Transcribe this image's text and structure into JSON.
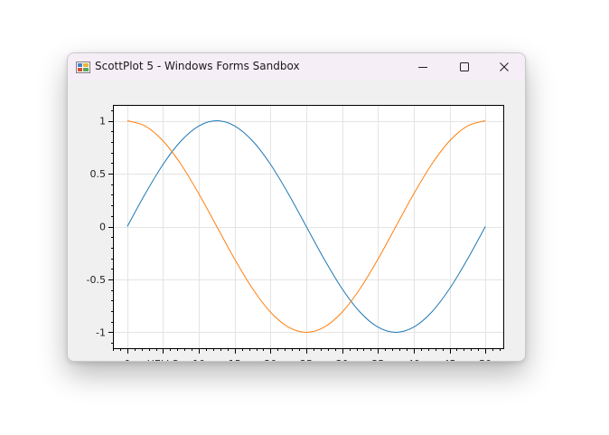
{
  "window": {
    "title": "ScottPlot 5 - Windows Forms Sandbox"
  },
  "icons": {
    "app": "scottplot-app-icon",
    "minimize": "minimize-icon",
    "maximize": "maximize-icon",
    "close": "close-icon"
  },
  "chart_data": {
    "type": "line",
    "title": "",
    "xlabel": "",
    "ylabel": "",
    "xlim": [
      -2,
      52.5
    ],
    "ylim": [
      -1.15,
      1.15
    ],
    "grid": true,
    "x_ticks": [
      {
        "value": 0,
        "label": "0"
      },
      {
        "value": 5,
        "label": "HELLO"
      },
      {
        "value": 10,
        "label": "10"
      },
      {
        "value": 15,
        "label": "15"
      },
      {
        "value": 20,
        "label": "20"
      },
      {
        "value": 25,
        "label": "25"
      },
      {
        "value": 30,
        "label": "30"
      },
      {
        "value": 35,
        "label": "35"
      },
      {
        "value": 40,
        "label": "40"
      },
      {
        "value": 45,
        "label": "45"
      },
      {
        "value": 50,
        "label": "50"
      }
    ],
    "y_ticks": [
      {
        "value": 1,
        "label": "1"
      },
      {
        "value": 0.5,
        "label": "0.5"
      },
      {
        "value": 0,
        "label": "0"
      },
      {
        "value": -0.5,
        "label": "-0.5"
      },
      {
        "value": -1,
        "label": "-1"
      }
    ],
    "x": [
      0,
      2.5,
      5,
      7.5,
      10,
      12.5,
      15,
      17.5,
      20,
      22.5,
      25,
      27.5,
      30,
      32.5,
      35,
      37.5,
      40,
      42.5,
      45,
      47.5,
      50
    ],
    "series": [
      {
        "color": "#1f77b4",
        "values": [
          0,
          0.309,
          0.588,
          0.809,
          0.951,
          1,
          0.951,
          0.809,
          0.588,
          0.309,
          0,
          -0.309,
          -0.588,
          -0.809,
          -0.951,
          -1,
          -0.951,
          -0.809,
          -0.588,
          -0.309,
          0
        ]
      },
      {
        "color": "#ff7f0e",
        "values": [
          1,
          0.951,
          0.809,
          0.588,
          0.309,
          0,
          -0.309,
          -0.588,
          -0.809,
          -0.951,
          -1,
          -0.951,
          -0.809,
          -0.588,
          -0.309,
          0,
          0.309,
          0.588,
          0.809,
          0.951,
          1
        ]
      }
    ]
  }
}
